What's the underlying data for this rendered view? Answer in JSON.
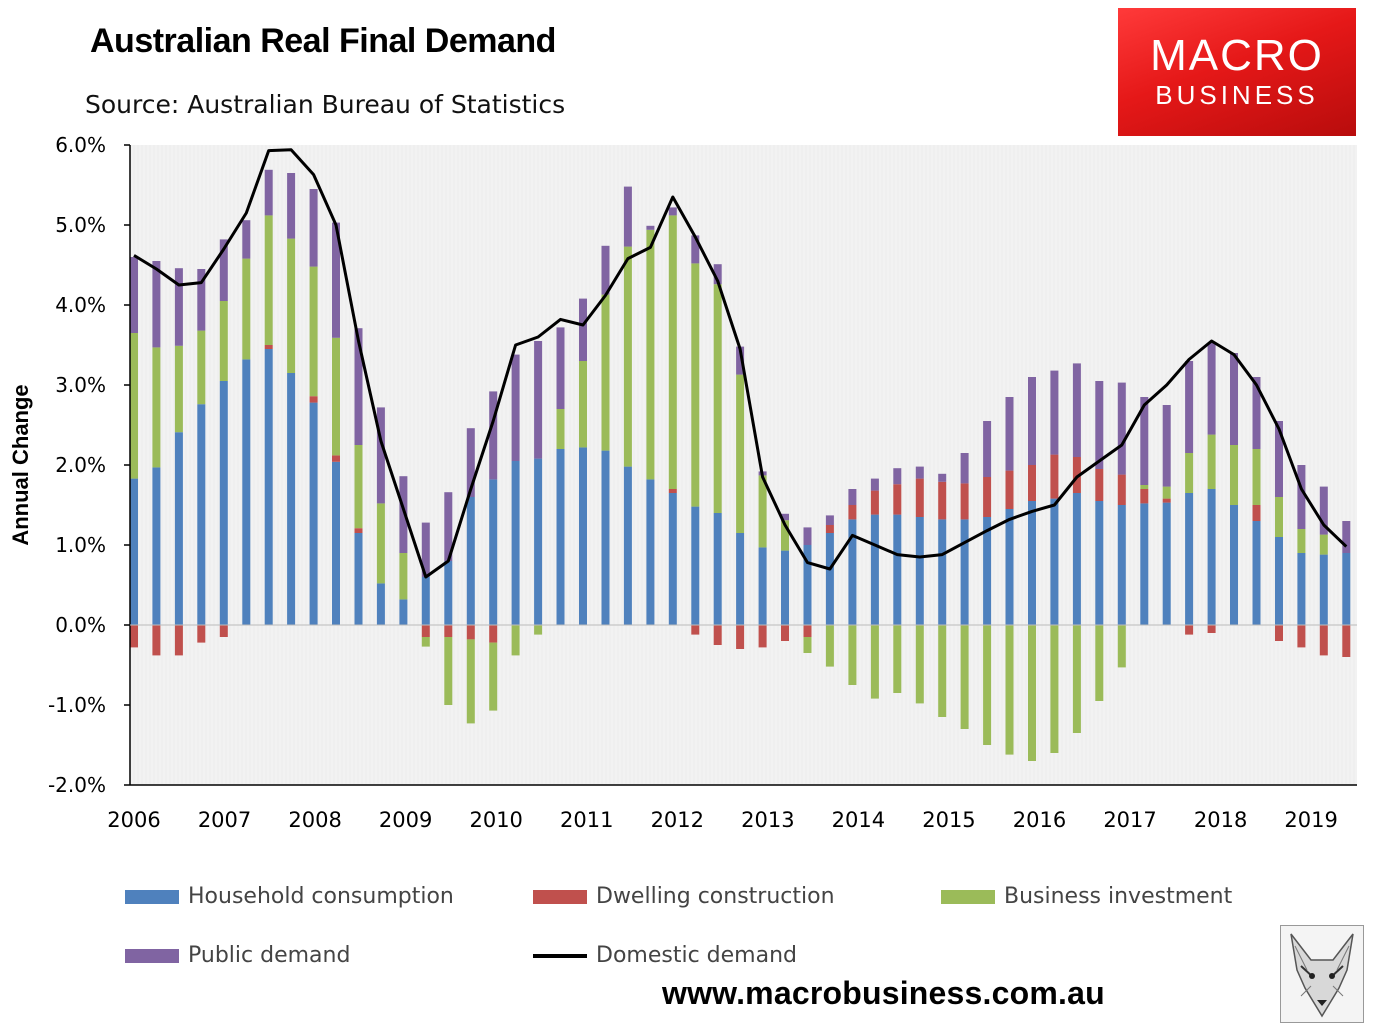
{
  "header": {
    "title": "Australian Real Final Demand",
    "subtitle": "Source: Australian Bureau of Statistics"
  },
  "logo": {
    "line1": "MACRO",
    "line2": "BUSINESS",
    "color": "#e51818"
  },
  "footer": {
    "url": "www.macrobusiness.com.au",
    "icon": "fox-icon"
  },
  "colors": {
    "household": "#4f81bd",
    "dwelling": "#c0504d",
    "business": "#9bbb59",
    "public": "#8064a2",
    "domestic": "#000000",
    "plot_bg": "#efefef"
  },
  "chart_data": {
    "type": "bar",
    "stacked": true,
    "title": "Australian Real Final Demand",
    "subtitle": "Source: Australian Bureau of Statistics",
    "xlabel": "",
    "ylabel": "Annual Change",
    "ylim": [
      -2.0,
      6.0
    ],
    "yticks": [
      "-2.0%",
      "-1.0%",
      "0.0%",
      "1.0%",
      "2.0%",
      "3.0%",
      "4.0%",
      "5.0%",
      "6.0%"
    ],
    "year_labels": [
      "2006",
      "2007",
      "2008",
      "2009",
      "2010",
      "2011",
      "2012",
      "2013",
      "2014",
      "2015",
      "2016",
      "2017",
      "2018",
      "2019"
    ],
    "legend_position": "bottom",
    "series": [
      {
        "name": "Household consumption",
        "kind": "bar",
        "values": [
          1.83,
          1.97,
          2.41,
          2.76,
          3.05,
          3.32,
          3.45,
          3.15,
          2.78,
          2.04,
          1.15,
          0.52,
          0.32,
          0.6,
          0.8,
          1.6,
          1.82,
          2.05,
          2.08,
          2.2,
          2.22,
          2.18,
          1.98,
          1.82,
          1.65,
          1.48,
          1.4,
          1.15,
          0.97,
          0.93,
          1.0,
          1.15,
          1.32,
          1.38,
          1.38,
          1.35,
          1.32,
          1.32,
          1.35,
          1.45,
          1.55,
          1.58,
          1.65,
          1.55,
          1.5,
          1.52,
          1.53,
          1.65,
          1.7,
          1.5,
          1.3,
          1.1,
          0.9,
          0.88,
          0.9
        ]
      },
      {
        "name": "Dwelling construction",
        "kind": "bar",
        "values": [
          -0.28,
          -0.38,
          -0.38,
          -0.22,
          -0.15,
          0,
          0.05,
          0,
          0.08,
          0.08,
          0.06,
          0,
          0,
          -0.15,
          -0.15,
          -0.18,
          -0.22,
          0,
          0,
          0,
          0,
          0,
          0,
          0,
          0.05,
          -0.12,
          -0.25,
          -0.3,
          -0.28,
          -0.2,
          -0.15,
          0.1,
          0.18,
          0.3,
          0.38,
          0.48,
          0.47,
          0.45,
          0.5,
          0.48,
          0.45,
          0.55,
          0.45,
          0.4,
          0.38,
          0.18,
          0.05,
          -0.12,
          -0.1,
          0,
          0.2,
          -0.2,
          -0.28,
          -0.38,
          -0.4
        ]
      },
      {
        "name": "Business investment",
        "kind": "bar",
        "values": [
          1.82,
          1.5,
          1.08,
          0.92,
          1.0,
          1.26,
          1.62,
          1.68,
          1.62,
          1.47,
          1.04,
          1.0,
          0.58,
          -0.12,
          -0.85,
          -1.05,
          -0.85,
          -0.38,
          -0.12,
          0.5,
          1.08,
          1.95,
          2.75,
          3.12,
          3.42,
          3.04,
          2.86,
          1.98,
          0.9,
          0.38,
          -0.2,
          -0.52,
          -0.75,
          -0.92,
          -0.85,
          -0.98,
          -1.15,
          -1.3,
          -1.5,
          -1.62,
          -1.7,
          -1.6,
          -1.35,
          -0.95,
          -0.53,
          0.05,
          0.15,
          0.5,
          0.68,
          0.75,
          0.7,
          0.5,
          0.3,
          0.25,
          0
        ]
      },
      {
        "name": "Public demand",
        "kind": "bar",
        "values": [
          0.95,
          1.08,
          0.97,
          0.77,
          0.77,
          0.48,
          0.57,
          0.82,
          0.97,
          1.44,
          1.46,
          1.2,
          0.96,
          0.68,
          0.86,
          0.86,
          1.1,
          1.33,
          1.47,
          1.02,
          0.78,
          0.61,
          0.75,
          0.05,
          0.1,
          0.35,
          0.25,
          0.35,
          0.05,
          0.08,
          0.22,
          0.12,
          0.2,
          0.15,
          0.2,
          0.15,
          0.1,
          0.38,
          0.7,
          0.92,
          1.1,
          1.05,
          1.17,
          1.1,
          1.15,
          1.1,
          1.02,
          1.15,
          1.15,
          1.15,
          0.9,
          0.95,
          0.8,
          0.6,
          0.4
        ]
      },
      {
        "name": "Domestic demand",
        "kind": "line",
        "values": [
          4.62,
          4.45,
          4.25,
          4.28,
          4.7,
          5.15,
          5.93,
          5.94,
          5.63,
          5.0,
          3.55,
          2.3,
          1.45,
          0.6,
          0.8,
          1.7,
          2.55,
          3.5,
          3.6,
          3.82,
          3.75,
          4.12,
          4.58,
          4.72,
          5.35,
          4.85,
          4.3,
          3.45,
          1.85,
          1.25,
          0.78,
          0.7,
          1.12,
          1.0,
          0.88,
          0.85,
          0.88,
          1.03,
          1.18,
          1.32,
          1.42,
          1.5,
          1.85,
          2.05,
          2.25,
          2.75,
          3.0,
          3.32,
          3.55,
          3.38,
          3.0,
          2.45,
          1.7,
          1.25,
          0.98
        ]
      }
    ]
  }
}
